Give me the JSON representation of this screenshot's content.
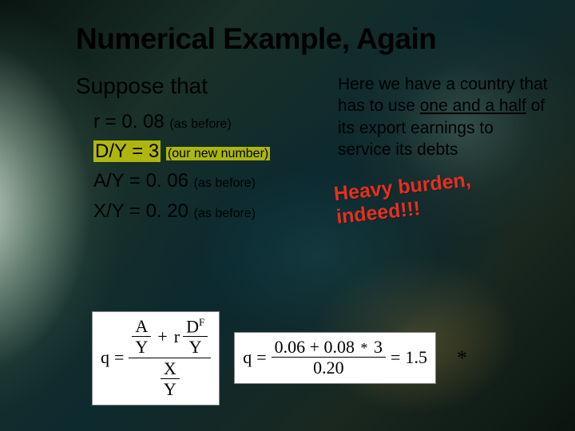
{
  "title": "Numerical Example, Again",
  "left": {
    "suppose": "Suppose that",
    "vars": [
      {
        "expr": "r = 0. 08",
        "note": "(as before)",
        "highlight": false
      },
      {
        "expr": "D/Y = 3",
        "note": "(our new number)",
        "highlight": true
      },
      {
        "expr": "A/Y = 0. 06",
        "note": "(as before)",
        "highlight": false
      },
      {
        "expr": "X/Y = 0. 20",
        "note": "(as before)",
        "highlight": false
      }
    ]
  },
  "right": {
    "body_pre": "Here we have a country that has to use ",
    "body_ul": "one and a half",
    "body_post": " of its export earnings to service its debts",
    "burden_l1": "Heavy burden,",
    "burden_l2": "indeed!!!"
  },
  "formula": {
    "q": "q",
    "eq": "=",
    "A": "A",
    "Y": "Y",
    "r": "r",
    "DF": "D",
    "Fsup": "F",
    "X": "X",
    "plus": "+",
    "n1": "0.06",
    "n2": "0.08",
    "n3": "3",
    "d1": "0.20",
    "mid_eq": "=",
    "result": "1.5",
    "star": "*"
  },
  "colors": {
    "highlight_bg": "#ffff66",
    "burden_color": "#e53020"
  }
}
